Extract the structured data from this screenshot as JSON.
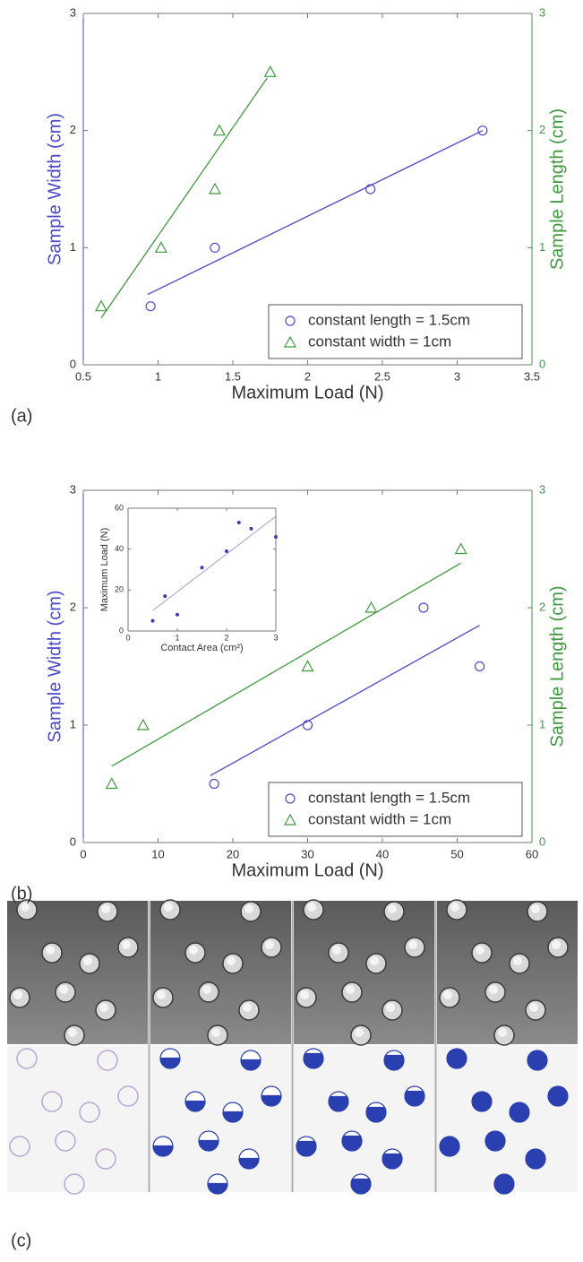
{
  "chart_data": [
    {
      "type": "scatter",
      "xlabel": "Maximum Load (N)",
      "ylabel": "Sample Width (cm)",
      "y2label": "Sample Length (cm)",
      "panel_label": "(a)",
      "xlim": [
        0.5,
        3.5
      ],
      "xticks": [
        0.5,
        1,
        1.5,
        2,
        2.5,
        3,
        3.5
      ],
      "ylim": [
        0,
        3
      ],
      "yticks": [
        0,
        1,
        2,
        3
      ],
      "y2lim": [
        0,
        3
      ],
      "y2ticks": [
        0,
        1,
        2,
        3
      ],
      "legend": "lower right",
      "series": [
        {
          "name": "constant length = 1.5cm",
          "color": "#4a4ac8",
          "marker": "circle",
          "x": [
            0.95,
            1.38,
            2.42,
            3.17
          ],
          "values": [
            0.5,
            1,
            1.5,
            2
          ],
          "fit": {
            "x": [
              0.93,
              3.17
            ],
            "values": [
              0.6,
              2.0
            ]
          }
        },
        {
          "name": "constant width = 1cm",
          "color": "#3f9a3f",
          "marker": "triangle",
          "axis": "y2",
          "x": [
            0.62,
            1.02,
            1.38,
            1.41,
            1.75
          ],
          "values": [
            0.5,
            1,
            1.5,
            2,
            2.5
          ],
          "fit": {
            "x": [
              0.62,
              1.73
            ],
            "values": [
              0.4,
              2.45
            ]
          }
        }
      ]
    },
    {
      "type": "scatter",
      "xlabel": "Maximum Load (N)",
      "ylabel": "Sample Width (cm)",
      "y2label": "Sample Length (cm)",
      "panel_label": "(b)",
      "xlim": [
        0,
        60
      ],
      "xticks": [
        0,
        10,
        20,
        30,
        40,
        50,
        60
      ],
      "ylim": [
        0,
        3
      ],
      "yticks": [
        0,
        1,
        2,
        3
      ],
      "y2lim": [
        0,
        3
      ],
      "y2ticks": [
        0,
        1,
        2,
        3
      ],
      "legend": "lower right",
      "series": [
        {
          "name": "constant length = 1.5cm",
          "color": "#4a4ac8",
          "marker": "circle",
          "x": [
            17.5,
            30,
            45.5,
            53
          ],
          "values": [
            0.5,
            1,
            2,
            1.5
          ],
          "fit": {
            "x": [
              17,
              53
            ],
            "values": [
              0.57,
              1.85
            ]
          }
        },
        {
          "name": "constant width = 1cm",
          "color": "#3f9a3f",
          "marker": "triangle",
          "axis": "y2",
          "x": [
            3.8,
            8,
            30,
            38.5,
            50.5
          ],
          "values": [
            0.5,
            1,
            1.5,
            2,
            2.5
          ],
          "fit": {
            "x": [
              3.8,
              50.5
            ],
            "values": [
              0.65,
              2.38
            ]
          }
        }
      ]
    },
    {
      "type": "scatter",
      "xlabel": "Contact Area (cm²)",
      "ylabel": "Maximum Load (N)",
      "xlim": [
        0,
        3
      ],
      "xticks": [
        0,
        1,
        2,
        3
      ],
      "ylim": [
        0,
        60
      ],
      "yticks": [
        0,
        20,
        40,
        60
      ],
      "series": [
        {
          "color": "#3a3ab8",
          "marker": "dot",
          "x": [
            0.5,
            0.75,
            1,
            1.5,
            2,
            2.25,
            2.5,
            3
          ],
          "values": [
            5,
            17,
            8,
            31,
            39,
            53,
            50,
            46
          ],
          "fit": {
            "x": [
              0.5,
              3
            ],
            "values": [
              10,
              56
            ]
          }
        }
      ]
    }
  ],
  "image_panel": {
    "label": "(c)"
  }
}
